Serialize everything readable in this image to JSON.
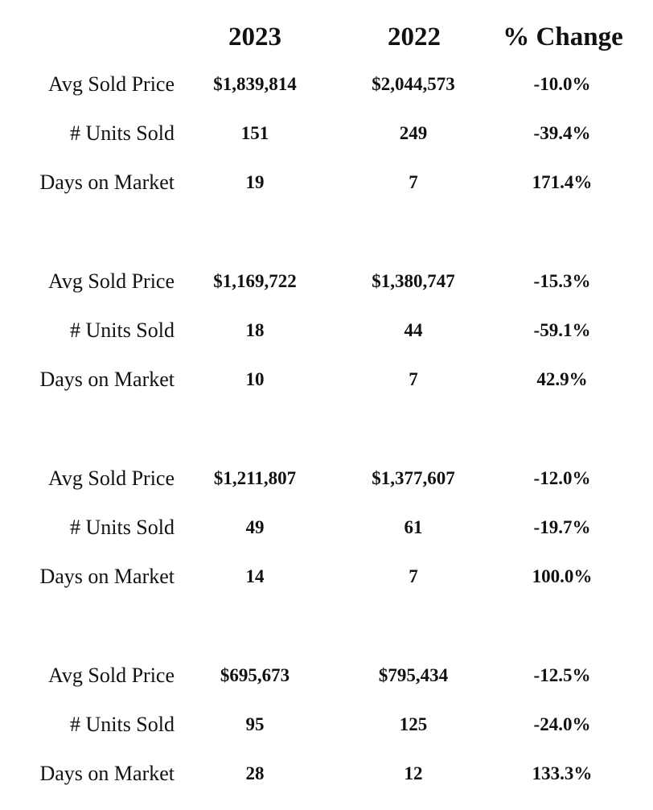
{
  "headers": {
    "col_2023": "2023",
    "col_2022": "2022",
    "col_change": "% Change"
  },
  "groups": [
    {
      "rows": [
        {
          "label": "Avg Sold Price",
          "y2023": "$1,839,814",
          "y2022": "$2,044,573",
          "change": "-10.0%"
        },
        {
          "label": "# Units Sold",
          "y2023": "151",
          "y2022": "249",
          "change": "-39.4%"
        },
        {
          "label": "Days on Market",
          "y2023": "19",
          "y2022": "7",
          "change": "171.4%"
        }
      ]
    },
    {
      "rows": [
        {
          "label": "Avg Sold Price",
          "y2023": "$1,169,722",
          "y2022": "$1,380,747",
          "change": "-15.3%"
        },
        {
          "label": "# Units Sold",
          "y2023": "18",
          "y2022": "44",
          "change": "-59.1%"
        },
        {
          "label": "Days on Market",
          "y2023": "10",
          "y2022": "7",
          "change": "42.9%"
        }
      ]
    },
    {
      "rows": [
        {
          "label": "Avg Sold Price",
          "y2023": "$1,211,807",
          "y2022": "$1,377,607",
          "change": "-12.0%"
        },
        {
          "label": "# Units Sold",
          "y2023": "49",
          "y2022": "61",
          "change": "-19.7%"
        },
        {
          "label": "Days on Market",
          "y2023": "14",
          "y2022": "7",
          "change": "100.0%"
        }
      ]
    },
    {
      "rows": [
        {
          "label": "Avg Sold Price",
          "y2023": "$695,673",
          "y2022": "$795,434",
          "change": "-12.5%"
        },
        {
          "label": "# Units Sold",
          "y2023": "95",
          "y2022": "125",
          "change": "-24.0%"
        },
        {
          "label": "Days on Market",
          "y2023": "28",
          "y2022": "12",
          "change": "133.3%"
        }
      ]
    }
  ]
}
